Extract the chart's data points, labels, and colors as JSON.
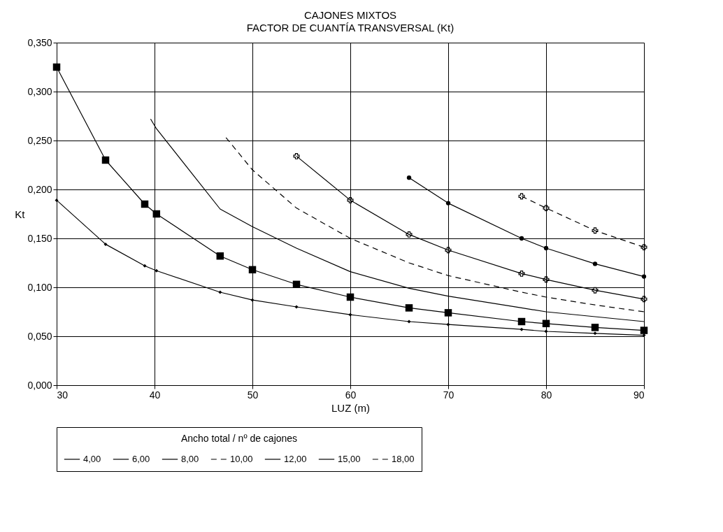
{
  "chart_data": {
    "type": "line",
    "title": "CAJONES MIXTOS",
    "subtitle": "FACTOR DE CUANTÍA TRANSVERSAL (Kt)",
    "xlabel": "LUZ (m)",
    "ylabel": "Kt",
    "legend_title": "Ancho total / nº de cajones",
    "legend": "bottom",
    "grid": true,
    "xlim": [
      30,
      90
    ],
    "xticks": [
      30,
      40,
      50,
      60,
      70,
      80,
      90
    ],
    "ylim": [
      0,
      0.35
    ],
    "yticks": [
      {
        "value": 0,
        "label": "0,000"
      },
      {
        "value": 0.05,
        "label": "0,050"
      },
      {
        "value": 0.1,
        "label": "0,100"
      },
      {
        "value": 0.15,
        "label": "0,150"
      },
      {
        "value": 0.2,
        "label": "0,200"
      },
      {
        "value": 0.25,
        "label": "0,250"
      },
      {
        "value": 0.3,
        "label": "0,300"
      },
      {
        "value": 0.35,
        "label": "0,350"
      }
    ],
    "series": [
      {
        "name": "4,00",
        "color": "#000000",
        "marker": "diamond",
        "line_style": "solid",
        "x": [
          30,
          35,
          39,
          40.2,
          46.7,
          50,
          54.5,
          60,
          66,
          70,
          77.5,
          80,
          85,
          90
        ],
        "values": [
          0.189,
          0.144,
          0.122,
          0.117,
          0.095,
          0.087,
          0.08,
          0.072,
          0.065,
          0.062,
          0.057,
          0.055,
          0.053,
          0.051
        ]
      },
      {
        "name": "6,00",
        "color": "#000000",
        "marker": "square",
        "line_style": "solid",
        "x": [
          30,
          35,
          39,
          40.2,
          46.7,
          50,
          54.5,
          60,
          66,
          70,
          77.5,
          80,
          85,
          90
        ],
        "values": [
          0.325,
          0.23,
          0.185,
          0.175,
          0.132,
          0.118,
          0.103,
          0.09,
          0.079,
          0.074,
          0.065,
          0.063,
          0.059,
          0.056
        ]
      },
      {
        "name": "8,00",
        "color": "#000000",
        "marker": "none",
        "line_style": "solid",
        "x": [
          39.6,
          40.2,
          46.7,
          50,
          54.5,
          60,
          66,
          70,
          77.5,
          80,
          85,
          90
        ],
        "values": [
          0.272,
          0.262,
          0.18,
          0.162,
          0.14,
          0.116,
          0.099,
          0.091,
          0.079,
          0.075,
          0.07,
          0.065
        ]
      },
      {
        "name": "10,00",
        "color": "#000000",
        "marker": "none",
        "line_style": "dashed",
        "x": [
          47.3,
          50,
          54.5,
          60,
          66,
          70,
          77.5,
          80,
          85,
          90
        ],
        "values": [
          0.253,
          0.22,
          0.181,
          0.15,
          0.125,
          0.112,
          0.095,
          0.09,
          0.082,
          0.075
        ]
      },
      {
        "name": "12,00",
        "color": "#000000",
        "marker": "cross",
        "line_style": "solid",
        "x": [
          54.5,
          60,
          66,
          70,
          77.5,
          80,
          85,
          90
        ],
        "values": [
          0.234,
          0.189,
          0.154,
          0.138,
          0.114,
          0.108,
          0.097,
          0.088
        ]
      },
      {
        "name": "15,00",
        "color": "#000000",
        "marker": "circle",
        "line_style": "solid",
        "x": [
          66,
          70,
          77.5,
          80,
          85,
          90
        ],
        "values": [
          0.212,
          0.186,
          0.15,
          0.14,
          0.124,
          0.111
        ]
      },
      {
        "name": "18,00",
        "color": "#000000",
        "marker": "cross",
        "line_style": "dashed",
        "x": [
          77.5,
          80,
          85,
          90
        ],
        "values": [
          0.193,
          0.181,
          0.158,
          0.141
        ]
      }
    ]
  }
}
